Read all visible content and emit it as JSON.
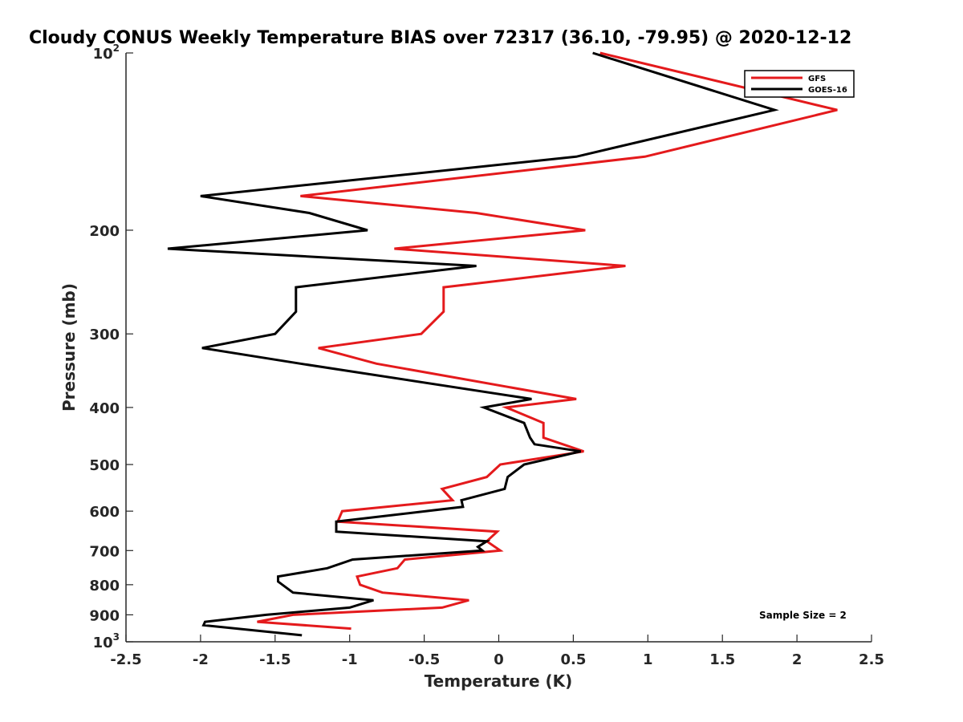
{
  "chart_data": {
    "type": "line",
    "title": "Cloudy CONUS Weekly Temperature BIAS over 72317 (36.10, -79.95) @ 2020-12-12",
    "xlabel": "Temperature (K)",
    "ylabel": "Pressure (mb)",
    "xlim": [
      -2.5,
      2.5
    ],
    "ylim": [
      100,
      1000
    ],
    "y_scale": "log",
    "y_reversed": true,
    "grid": false,
    "legend_position": "top-right",
    "x_ticks": [
      {
        "value": -2.5,
        "label": "-2.5"
      },
      {
        "value": -2,
        "label": "-2"
      },
      {
        "value": -1.5,
        "label": "-1.5"
      },
      {
        "value": -1,
        "label": "-1"
      },
      {
        "value": -0.5,
        "label": "-0.5"
      },
      {
        "value": 0,
        "label": "0"
      },
      {
        "value": 0.5,
        "label": "0.5"
      },
      {
        "value": 1,
        "label": "1"
      },
      {
        "value": 1.5,
        "label": "1.5"
      },
      {
        "value": 2,
        "label": "2"
      },
      {
        "value": 2.5,
        "label": "2.5"
      }
    ],
    "y_ticks": [
      {
        "value": 100,
        "label": "10",
        "sup": "2"
      },
      {
        "value": 200,
        "label": "200"
      },
      {
        "value": 300,
        "label": "300"
      },
      {
        "value": 400,
        "label": "400"
      },
      {
        "value": 500,
        "label": "500"
      },
      {
        "value": 600,
        "label": "600"
      },
      {
        "value": 700,
        "label": "700"
      },
      {
        "value": 800,
        "label": "800"
      },
      {
        "value": 900,
        "label": "900"
      },
      {
        "value": 1000,
        "label": "10",
        "sup": "3"
      }
    ],
    "series": [
      {
        "name": "GFS",
        "color": "#e41a1c",
        "points": [
          {
            "x": 0.68,
            "p": 100
          },
          {
            "x": 2.27,
            "p": 125
          },
          {
            "x": 0.98,
            "p": 150
          },
          {
            "x": -1.33,
            "p": 175
          },
          {
            "x": -0.15,
            "p": 187
          },
          {
            "x": 0.58,
            "p": 200
          },
          {
            "x": -0.7,
            "p": 215
          },
          {
            "x": 0.85,
            "p": 230
          },
          {
            "x": -0.37,
            "p": 250
          },
          {
            "x": -0.37,
            "p": 275
          },
          {
            "x": -0.52,
            "p": 300
          },
          {
            "x": -1.21,
            "p": 317
          },
          {
            "x": -0.82,
            "p": 337
          },
          {
            "x": 0.52,
            "p": 387
          },
          {
            "x": 0.05,
            "p": 400
          },
          {
            "x": 0.3,
            "p": 425
          },
          {
            "x": 0.3,
            "p": 450
          },
          {
            "x": 0.57,
            "p": 475
          },
          {
            "x": 0.01,
            "p": 500
          },
          {
            "x": -0.08,
            "p": 525
          },
          {
            "x": -0.38,
            "p": 550
          },
          {
            "x": -0.31,
            "p": 575
          },
          {
            "x": -1.05,
            "p": 600
          },
          {
            "x": -1.08,
            "p": 625
          },
          {
            "x": -0.01,
            "p": 650
          },
          {
            "x": -0.08,
            "p": 675
          },
          {
            "x": 0.01,
            "p": 700
          },
          {
            "x": -0.63,
            "p": 725
          },
          {
            "x": -0.68,
            "p": 750
          },
          {
            "x": -0.95,
            "p": 775
          },
          {
            "x": -0.93,
            "p": 800
          },
          {
            "x": -0.78,
            "p": 825
          },
          {
            "x": -0.2,
            "p": 850
          },
          {
            "x": -0.38,
            "p": 875
          },
          {
            "x": -1.38,
            "p": 900
          },
          {
            "x": -1.62,
            "p": 925
          },
          {
            "x": -0.99,
            "p": 950
          }
        ]
      },
      {
        "name": "GOES-16",
        "color": "#000000",
        "points": [
          {
            "x": 0.63,
            "p": 100
          },
          {
            "x": 1.85,
            "p": 125
          },
          {
            "x": 0.52,
            "p": 150
          },
          {
            "x": -2.0,
            "p": 175
          },
          {
            "x": -1.27,
            "p": 187
          },
          {
            "x": -0.88,
            "p": 200
          },
          {
            "x": -2.22,
            "p": 215
          },
          {
            "x": -0.15,
            "p": 230
          },
          {
            "x": -1.36,
            "p": 250
          },
          {
            "x": -1.36,
            "p": 275
          },
          {
            "x": -1.5,
            "p": 300
          },
          {
            "x": -1.99,
            "p": 317
          },
          {
            "x": -1.33,
            "p": 337
          },
          {
            "x": 0.22,
            "p": 387
          },
          {
            "x": -0.1,
            "p": 400
          },
          {
            "x": 0.17,
            "p": 425
          },
          {
            "x": 0.21,
            "p": 450
          },
          {
            "x": 0.24,
            "p": 462
          },
          {
            "x": 0.55,
            "p": 475
          },
          {
            "x": 0.17,
            "p": 500
          },
          {
            "x": 0.06,
            "p": 525
          },
          {
            "x": 0.04,
            "p": 550
          },
          {
            "x": -0.25,
            "p": 575
          },
          {
            "x": -0.24,
            "p": 590
          },
          {
            "x": -1.09,
            "p": 625
          },
          {
            "x": -1.09,
            "p": 650
          },
          {
            "x": -0.08,
            "p": 675
          },
          {
            "x": -0.14,
            "p": 690
          },
          {
            "x": -0.11,
            "p": 700
          },
          {
            "x": -0.98,
            "p": 725
          },
          {
            "x": -1.15,
            "p": 750
          },
          {
            "x": -1.48,
            "p": 775
          },
          {
            "x": -1.48,
            "p": 790
          },
          {
            "x": -1.38,
            "p": 825
          },
          {
            "x": -0.84,
            "p": 850
          },
          {
            "x": -1.0,
            "p": 875
          },
          {
            "x": -1.56,
            "p": 900
          },
          {
            "x": -1.97,
            "p": 925
          },
          {
            "x": -1.98,
            "p": 937
          },
          {
            "x": -1.32,
            "p": 975
          }
        ]
      }
    ],
    "annotation": "Sample Size = 2"
  }
}
